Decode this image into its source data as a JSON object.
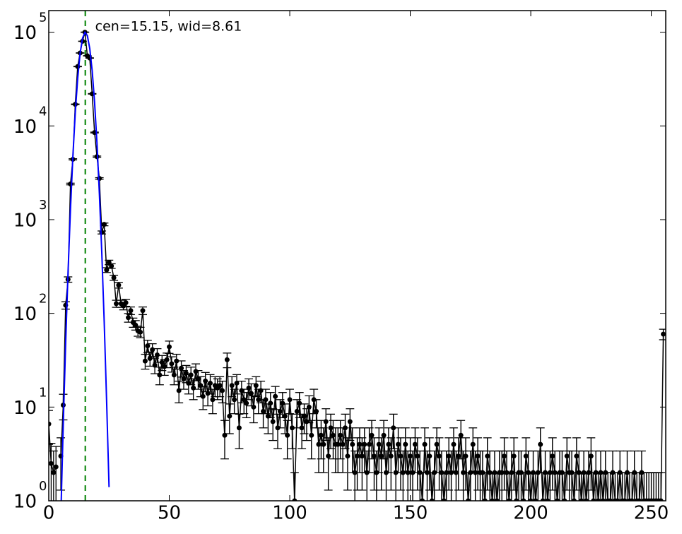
{
  "chart_data": {
    "type": "errorbar-log",
    "annotation": "cen=15.15, wid=8.61",
    "center_line": {
      "x": 15.15,
      "color": "#008000"
    },
    "xlim": [
      0,
      256
    ],
    "xticks": [
      0,
      50,
      100,
      150,
      200,
      250
    ],
    "ylim": [
      1,
      170000
    ],
    "log_y": true,
    "yticks": [
      {
        "value": 1,
        "label": "10",
        "exponent": "0"
      },
      {
        "value": 10,
        "label": "10",
        "exponent": "1"
      },
      {
        "value": 100,
        "label": "10",
        "exponent": "2"
      },
      {
        "value": 1000,
        "label": "10",
        "exponent": "3"
      },
      {
        "value": 10000,
        "label": "10",
        "exponent": "4"
      },
      {
        "value": 100000,
        "label": "10",
        "exponent": "5"
      }
    ],
    "series": [
      {
        "color": "#000000",
        "x": [
          0,
          1,
          2,
          3,
          4,
          5,
          6,
          7,
          8,
          9,
          10,
          11,
          12,
          13,
          14,
          15,
          16,
          17,
          18,
          19,
          20,
          21,
          22,
          23,
          24,
          25,
          26,
          27,
          28,
          29,
          30,
          31,
          32,
          33,
          34,
          35,
          36,
          37,
          38,
          39,
          40,
          41,
          42,
          43,
          44,
          45,
          46,
          47,
          48,
          49,
          50,
          51,
          52,
          53,
          54,
          55,
          56,
          57,
          58,
          59,
          60,
          61,
          62,
          63,
          64,
          65,
          66,
          67,
          68,
          69,
          70,
          71,
          72,
          73,
          74,
          75,
          76,
          77,
          78,
          79,
          80,
          81,
          82,
          83,
          84,
          85,
          86,
          87,
          88,
          89,
          90,
          91,
          92,
          93,
          94,
          95,
          96,
          97,
          98,
          99,
          100,
          101,
          102,
          103,
          104,
          105,
          106,
          107,
          108,
          109,
          110,
          111,
          112,
          113,
          114,
          115,
          116,
          117,
          118,
          119,
          120,
          121,
          122,
          123,
          124,
          125,
          126,
          127,
          128,
          129,
          130,
          131,
          132,
          133,
          134,
          135,
          136,
          137,
          138,
          139,
          140,
          141,
          142,
          143,
          144,
          145,
          146,
          147,
          148,
          149,
          150,
          151,
          152,
          153,
          154,
          155,
          156,
          157,
          158,
          159,
          160,
          161,
          162,
          163,
          164,
          165,
          166,
          167,
          168,
          169,
          170,
          171,
          172,
          173,
          174,
          175,
          176,
          177,
          178,
          179,
          180,
          181,
          182,
          183,
          184,
          185,
          186,
          187,
          188,
          189,
          190,
          191,
          192,
          193,
          194,
          195,
          196,
          197,
          198,
          199,
          200,
          201,
          202,
          203,
          204,
          205,
          206,
          207,
          208,
          209,
          210,
          211,
          212,
          213,
          214,
          215,
          216,
          217,
          218,
          219,
          220,
          221,
          222,
          223,
          224,
          225,
          226,
          227,
          228,
          229,
          230,
          231,
          232,
          233,
          234,
          235,
          236,
          237,
          238,
          239,
          240,
          241,
          242,
          243,
          244,
          245,
          246,
          247,
          248,
          249,
          250,
          251,
          252,
          253,
          254,
          255
        ],
        "values": [
          6.6,
          2.5,
          2,
          2.3,
          null,
          3,
          10.5,
          122,
          230,
          2400,
          4400,
          17000,
          43000,
          60000,
          80000,
          100000,
          56000,
          53000,
          22000,
          8500,
          4700,
          2750,
          730,
          890,
          290,
          350,
          320,
          240,
          127,
          200,
          127,
          120,
          130,
          90,
          107,
          80,
          75,
          65,
          63,
          107,
          31,
          45,
          33,
          41,
          28,
          36,
          22,
          30,
          27,
          32,
          44,
          29,
          22,
          31,
          15,
          26,
          20,
          23,
          18,
          22,
          16,
          24,
          20,
          17,
          13,
          19,
          14,
          18,
          12,
          17,
          16,
          17,
          15,
          5,
          32,
          8,
          17,
          12,
          18,
          6,
          15,
          12,
          11,
          16,
          14,
          10,
          17,
          12,
          15,
          9,
          12,
          8,
          11,
          7,
          13,
          6,
          9,
          11,
          8,
          5,
          12,
          6,
          1,
          9,
          11,
          6,
          8,
          7,
          10,
          5,
          12,
          9,
          4,
          5,
          4,
          7,
          3,
          6,
          5,
          4,
          4,
          5,
          4,
          6,
          3,
          7,
          4,
          2,
          3,
          4,
          3,
          4,
          2,
          4,
          5,
          3,
          2,
          4,
          3,
          5,
          2,
          4,
          3,
          6,
          2,
          4,
          3,
          2,
          4,
          2,
          3,
          2,
          4,
          3,
          2,
          1,
          4,
          2,
          3,
          1,
          2,
          4,
          3,
          2,
          1,
          2,
          3,
          2,
          4,
          2,
          3,
          5,
          2,
          3,
          1,
          2,
          4,
          2,
          3,
          2,
          2,
          1,
          3,
          2,
          1,
          2,
          1,
          2,
          2,
          3,
          2,
          1,
          2,
          3,
          1,
          2,
          2,
          1,
          3,
          2,
          1,
          2,
          1,
          2,
          4,
          1,
          2,
          1,
          2,
          3,
          2,
          1,
          2,
          2,
          1,
          3,
          2,
          2,
          1,
          3,
          2,
          1,
          2,
          1,
          2,
          3,
          1,
          2,
          1,
          2,
          1,
          2,
          1,
          1,
          2,
          1,
          1,
          2,
          1,
          1,
          2,
          1,
          1,
          2,
          1,
          1,
          2,
          1,
          1,
          1,
          1,
          1,
          1,
          1,
          1,
          60
        ],
        "errors": [
          2.6,
          1.6,
          1.4,
          1.5,
          null,
          1.7,
          3.2,
          11,
          15,
          49,
          66,
          130,
          207,
          245,
          283,
          316,
          237,
          230,
          148,
          92,
          69,
          52,
          27,
          30,
          17,
          19,
          18,
          15,
          11,
          14,
          11,
          11,
          11,
          9.5,
          10,
          9,
          8.7,
          8,
          8,
          10,
          5.6,
          6.7,
          5.7,
          6.4,
          5.3,
          6,
          4.7,
          5.5,
          5.2,
          5.7,
          6.6,
          5.4,
          4.7,
          5.6,
          3.9,
          5.1,
          4.5,
          4.8,
          4.2,
          4.7,
          4,
          4.9,
          4.5,
          4.1,
          3.6,
          4.4,
          3.7,
          4.2,
          3.5,
          4.1,
          4,
          4.1,
          3.9,
          2.2,
          5.7,
          2.8,
          4.1,
          3.5,
          4.2,
          2.4,
          3.9,
          3.5,
          3.3,
          4,
          3.7,
          3.2,
          4.1,
          3.5,
          3.9,
          3,
          3.5,
          2.8,
          3.3,
          2.6,
          3.6,
          2.4,
          3,
          3.3,
          2.8,
          2.2,
          3.5,
          2.4,
          1,
          3,
          3.3,
          2.4,
          2.8,
          2.6,
          3.2,
          2.2,
          3.5,
          3,
          2,
          2.2,
          2,
          2.6,
          1.7,
          2.4,
          2.2,
          2,
          2,
          2.2,
          2,
          2.4,
          1.7,
          2.6,
          2,
          1.4,
          1.7,
          2,
          1.7,
          2,
          1.4,
          2,
          2.2,
          1.7,
          1.4,
          2,
          1.7,
          2.2,
          1.4,
          2,
          1.7,
          2.4,
          1.4,
          2,
          1.7,
          1.4,
          2,
          1.4,
          1.7,
          1.4,
          2,
          1.7,
          1.4,
          1,
          2,
          1.4,
          1.7,
          1,
          1.4,
          2,
          1.7,
          1.4,
          1,
          1.4,
          1.7,
          1.4,
          2,
          1.4,
          1.7,
          2.2,
          1.4,
          1.7,
          1,
          1.4,
          2,
          1.4,
          1.7,
          1.4,
          1.4,
          1,
          1.7,
          1.4,
          1,
          1.4,
          1,
          1.4,
          1.4,
          1.7,
          1.4,
          1,
          1.4,
          1.7,
          1,
          1.4,
          1.4,
          1,
          1.7,
          1.4,
          1,
          1.4,
          1,
          1.4,
          2,
          1,
          1.4,
          1,
          1.4,
          1.7,
          1.4,
          1,
          1.4,
          1.4,
          1,
          1.7,
          1.4,
          1.4,
          1,
          1.7,
          1.4,
          1,
          1.4,
          1,
          1.4,
          1.7,
          1,
          1.4,
          1,
          1.4,
          1,
          1.4,
          1,
          1,
          1.4,
          1,
          1,
          1.4,
          1,
          1,
          1.4,
          1,
          1,
          1.4,
          1,
          1,
          1.4,
          1,
          1,
          1,
          1,
          1,
          1,
          1,
          1,
          7.7
        ]
      },
      {
        "color": "#0000ff",
        "kind": "fit",
        "x": [
          5,
          6,
          7,
          8,
          9,
          10,
          11,
          12,
          13,
          14,
          15,
          16,
          17,
          18,
          19,
          20,
          21,
          22,
          23,
          24,
          25
        ],
        "values": [
          0.7,
          6.5,
          48,
          277,
          1280,
          4700,
          13800,
          32000,
          59000,
          86000,
          99700,
          92000,
          67000,
          39000,
          18000,
          6600,
          1900,
          450,
          83,
          12,
          1.4
        ]
      }
    ]
  }
}
